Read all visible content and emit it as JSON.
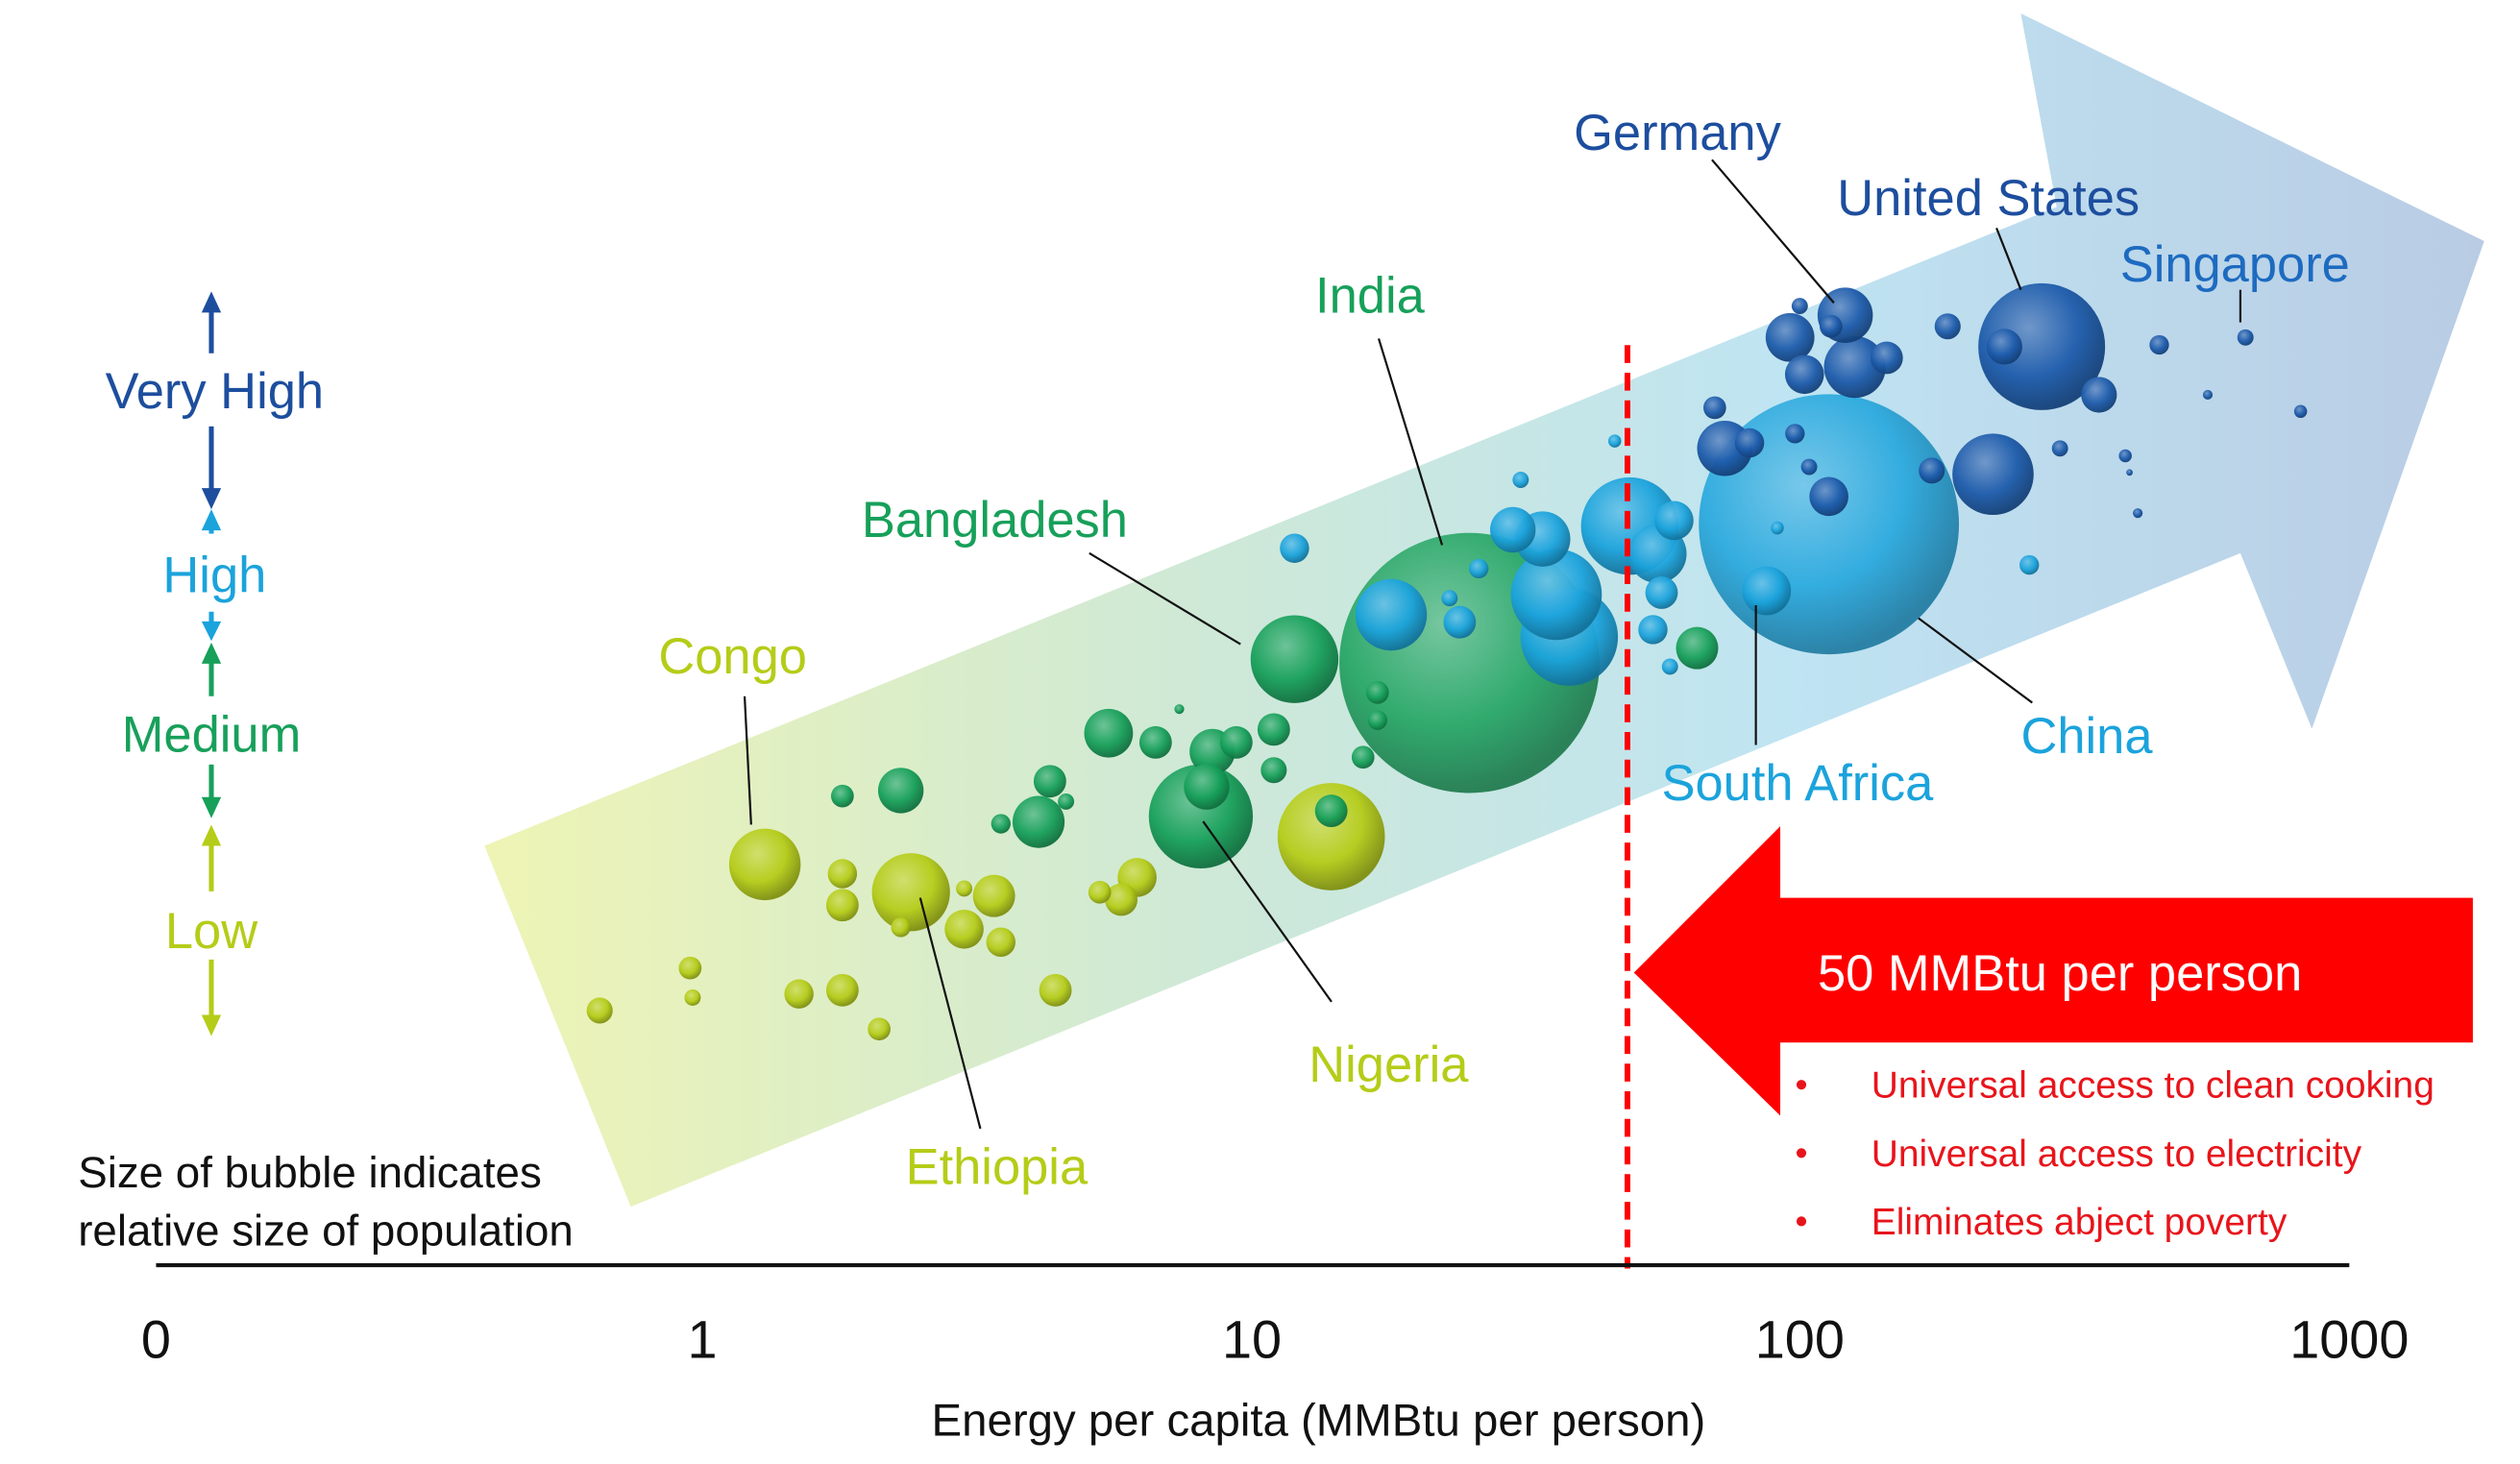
{
  "chart_data": {
    "type": "scatter",
    "subtype": "bubble",
    "xlabel": "Energy per capita (MMBtu per person)",
    "x_scale": "log",
    "x_ticks": [
      "0",
      "1",
      "10",
      "100",
      "1000"
    ],
    "y_levels": [
      "Low",
      "Medium",
      "High",
      "Very High"
    ],
    "size_note": [
      "Size of bubble indicates",
      "relative size of population"
    ],
    "colors": {
      "Low": "#b5cc18",
      "Medium": "#17a05a",
      "High": "#1ba3dc",
      "Very High": "#1d5bab",
      "threshold": "#ff0000"
    },
    "threshold": {
      "value": 50,
      "label": "50 MMBtu per person",
      "bullets": [
        "Universal access to clean cooking",
        "Universal access to electricity",
        "Eliminates abject poverty"
      ]
    },
    "country_labels": [
      {
        "name": "Germany",
        "level": "Very High"
      },
      {
        "name": "United States",
        "level": "Very High"
      },
      {
        "name": "Singapore",
        "level": "Very High"
      },
      {
        "name": "India",
        "level": "Medium"
      },
      {
        "name": "Bangladesh",
        "level": "Medium"
      },
      {
        "name": "Congo",
        "level": "Low"
      },
      {
        "name": "Ethiopia",
        "level": "Low"
      },
      {
        "name": "Nigeria",
        "level": "Low"
      },
      {
        "name": "South Africa",
        "level": "High"
      },
      {
        "name": "China",
        "level": "High"
      }
    ],
    "bubbles": {
      "Low": [
        [
          0.65,
          0.12,
          0.64
        ],
        [
          0.95,
          0.35,
          0.49
        ],
        [
          0.96,
          0.19,
          0.25
        ],
        [
          1.3,
          0.91,
          4.84
        ],
        [
          1.5,
          0.21,
          0.81
        ],
        [
          1.8,
          0.23,
          1.0
        ],
        [
          1.8,
          0.86,
          0.81
        ],
        [
          1.8,
          0.69,
          1.0
        ],
        [
          2.1,
          0.02,
          0.49
        ],
        [
          2.4,
          0.76,
          5.76
        ],
        [
          2.3,
          0.57,
          0.36
        ],
        [
          3.0,
          0.78,
          0.25
        ],
        [
          3.4,
          0.74,
          1.69
        ],
        [
          3.0,
          0.56,
          1.44
        ],
        [
          3.5,
          0.49,
          0.81
        ],
        [
          4.4,
          0.23,
          1.0
        ],
        [
          6.2,
          0.84,
          1.44
        ],
        [
          5.8,
          0.72,
          1.0
        ],
        [
          5.3,
          0.76,
          0.49
        ],
        [
          14,
          1.06,
          10.89
        ]
      ],
      "Medium": [
        [
          1.8,
          1.28,
          0.49
        ],
        [
          2.3,
          1.31,
          1.96
        ],
        [
          4.3,
          1.36,
          1.0
        ],
        [
          4.1,
          1.14,
          2.56
        ],
        [
          3.5,
          1.13,
          0.36
        ],
        [
          4.6,
          1.25,
          0.25
        ],
        [
          5.5,
          1.62,
          2.25
        ],
        [
          6.7,
          1.57,
          1.0
        ],
        [
          7.4,
          1.75,
          0.09
        ],
        [
          8.5,
          1.52,
          1.96
        ],
        [
          8.3,
          1.33,
          1.96
        ],
        [
          9.4,
          1.57,
          1.0
        ],
        [
          11,
          1.64,
          1.0
        ],
        [
          11,
          1.42,
          0.64
        ],
        [
          8.1,
          1.17,
          10.24
        ],
        [
          12,
          2.02,
          7.29
        ],
        [
          14,
          1.2,
          1.0
        ],
        [
          16,
          1.49,
          0.49
        ],
        [
          17,
          1.84,
          0.49
        ],
        [
          17,
          1.69,
          0.36
        ],
        [
          25,
          2.0,
          64.0
        ],
        [
          65,
          2.08,
          1.69
        ]
      ],
      "High": [
        [
          12,
          2.62,
          0.81
        ],
        [
          18,
          2.26,
          4.84
        ],
        [
          24,
          2.22,
          1.0
        ],
        [
          23,
          2.35,
          0.25
        ],
        [
          30,
          2.72,
          1.96
        ],
        [
          26,
          2.51,
          0.36
        ],
        [
          31,
          2.99,
          0.25
        ],
        [
          36,
          2.37,
          7.84
        ],
        [
          38,
          2.14,
          9.0
        ],
        [
          34,
          2.67,
          2.89
        ],
        [
          49,
          2.74,
          9.0
        ],
        [
          55,
          2.59,
          3.24
        ],
        [
          59,
          2.77,
          1.44
        ],
        [
          56,
          2.38,
          1.0
        ],
        [
          54,
          2.18,
          0.81
        ],
        [
          58,
          1.98,
          0.25
        ],
        [
          113,
          2.75,
          64.0
        ],
        [
          87,
          2.39,
          2.25
        ],
        [
          262,
          2.53,
          0.36
        ],
        [
          91,
          2.73,
          0.16
        ],
        [
          46,
          3.2,
          0.16
        ]
      ],
      "Very High": [
        [
          121,
          3.88,
          2.89
        ],
        [
          96,
          3.76,
          2.25
        ],
        [
          126,
          3.6,
          3.61
        ],
        [
          102,
          3.56,
          1.44
        ],
        [
          144,
          3.65,
          1.0
        ],
        [
          114,
          3.82,
          0.49
        ],
        [
          100,
          3.93,
          0.25
        ],
        [
          73,
          3.16,
          2.89
        ],
        [
          81,
          3.19,
          0.81
        ],
        [
          70,
          3.38,
          0.49
        ],
        [
          186,
          3.82,
          0.64
        ],
        [
          276,
          3.71,
          15.21
        ],
        [
          236,
          3.71,
          1.21
        ],
        [
          351,
          3.45,
          1.21
        ],
        [
          225,
          3.02,
          6.25
        ],
        [
          174,
          3.04,
          0.64
        ],
        [
          113,
          2.9,
          1.44
        ],
        [
          98,
          3.24,
          0.36
        ],
        [
          104,
          3.06,
          0.25
        ],
        [
          298,
          3.16,
          0.25
        ],
        [
          392,
          3.12,
          0.16
        ],
        [
          452,
          3.72,
          0.36
        ],
        [
          649,
          3.76,
          0.25
        ],
        [
          818,
          3.36,
          0.16
        ],
        [
          554,
          3.45,
          0.09
        ],
        [
          413,
          2.81,
          0.09
        ],
        [
          399,
          3.03,
          0.04
        ]
      ]
    }
  }
}
